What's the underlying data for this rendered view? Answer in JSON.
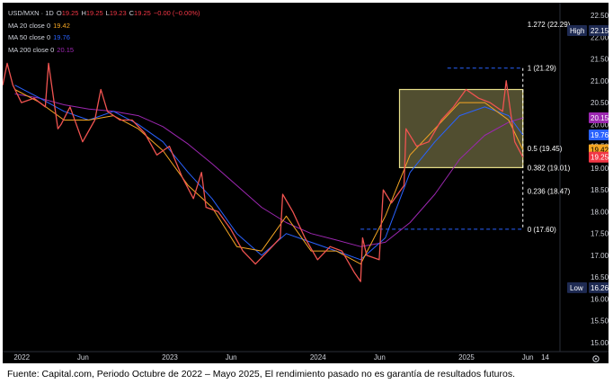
{
  "legend": {
    "symbol": "USD/MXN · 1D",
    "ohlc": [
      {
        "label": "O",
        "value": "19.25"
      },
      {
        "label": "H",
        "value": "19.25"
      },
      {
        "label": "L",
        "value": "19.23"
      },
      {
        "label": "C",
        "value": "19.25"
      },
      {
        "label": "",
        "value": "−0.00 (−0.00%)"
      }
    ],
    "ma": [
      {
        "label": "MA 20 close 0",
        "value": "19.42",
        "color": "#f5a623"
      },
      {
        "label": "MA 50 close 0",
        "value": "19.76",
        "color": "#2962ff"
      },
      {
        "label": "MA 200 close 0",
        "value": "20.15",
        "color": "#9c27b0"
      }
    ]
  },
  "caption": "Fuente: Capital.com, Periodo Octubre de 2022 – Mayo 2025, El rendimiento pasado no es garantía de resultados futuros.",
  "chart_data": {
    "type": "line",
    "series": [
      {
        "name": "USD/MXN",
        "color": "#ef5350",
        "points": [
          [
            "2021-11-15",
            20.9
          ],
          [
            "2021-11-26",
            21.4
          ],
          [
            "2021-12-10",
            20.9
          ],
          [
            "2021-12-31",
            20.5
          ],
          [
            "2022-01-31",
            20.6
          ],
          [
            "2022-02-28",
            20.4
          ],
          [
            "2022-03-08",
            21.4
          ],
          [
            "2022-03-31",
            19.9
          ],
          [
            "2022-04-08",
            20.0
          ],
          [
            "2022-04-30",
            20.4
          ],
          [
            "2022-05-31",
            19.6
          ],
          [
            "2022-06-30",
            20.1
          ],
          [
            "2022-07-15",
            20.8
          ],
          [
            "2022-07-31",
            20.3
          ],
          [
            "2022-08-31",
            20.1
          ],
          [
            "2022-09-30",
            20.1
          ],
          [
            "2022-10-31",
            19.8
          ],
          [
            "2022-11-30",
            19.3
          ],
          [
            "2022-12-31",
            19.5
          ],
          [
            "2023-01-31",
            18.8
          ],
          [
            "2023-02-28",
            18.3
          ],
          [
            "2023-03-20",
            18.9
          ],
          [
            "2023-03-31",
            18.1
          ],
          [
            "2023-04-30",
            18.0
          ],
          [
            "2023-05-31",
            17.6
          ],
          [
            "2023-06-30",
            17.1
          ],
          [
            "2023-07-31",
            16.8
          ],
          [
            "2023-08-31",
            17.1
          ],
          [
            "2023-09-30",
            17.4
          ],
          [
            "2023-10-06",
            18.4
          ],
          [
            "2023-10-31",
            18.0
          ],
          [
            "2023-11-30",
            17.4
          ],
          [
            "2023-12-31",
            16.9
          ],
          [
            "2024-01-31",
            17.2
          ],
          [
            "2024-02-29",
            17.1
          ],
          [
            "2024-03-31",
            16.6
          ],
          [
            "2024-04-15",
            16.4
          ],
          [
            "2024-04-20",
            17.4
          ],
          [
            "2024-04-30",
            17.0
          ],
          [
            "2024-05-31",
            16.9
          ],
          [
            "2024-06-10",
            18.5
          ],
          [
            "2024-06-30",
            18.2
          ],
          [
            "2024-07-31",
            18.6
          ],
          [
            "2024-08-05",
            19.9
          ],
          [
            "2024-08-31",
            19.5
          ],
          [
            "2024-09-30",
            19.6
          ],
          [
            "2024-10-31",
            20.1
          ],
          [
            "2024-11-30",
            20.4
          ],
          [
            "2024-12-31",
            20.8
          ],
          [
            "2025-01-31",
            20.6
          ],
          [
            "2025-02-28",
            20.5
          ],
          [
            "2025-03-31",
            20.3
          ],
          [
            "2025-04-09",
            21.0
          ],
          [
            "2025-04-30",
            19.6
          ],
          [
            "2025-05-20",
            19.25
          ]
        ]
      },
      {
        "name": "MA 20",
        "color": "#f5a623",
        "points": [
          [
            "2021-12-15",
            20.8
          ],
          [
            "2022-02-15",
            20.5
          ],
          [
            "2022-04-15",
            20.1
          ],
          [
            "2022-06-15",
            20.1
          ],
          [
            "2022-08-15",
            20.2
          ],
          [
            "2022-10-15",
            19.9
          ],
          [
            "2022-12-15",
            19.4
          ],
          [
            "2023-02-15",
            18.6
          ],
          [
            "2023-04-15",
            18.1
          ],
          [
            "2023-06-15",
            17.2
          ],
          [
            "2023-08-15",
            17.1
          ],
          [
            "2023-10-15",
            17.9
          ],
          [
            "2023-12-15",
            17.1
          ],
          [
            "2024-02-15",
            17.1
          ],
          [
            "2024-04-15",
            16.8
          ],
          [
            "2024-06-15",
            17.9
          ],
          [
            "2024-08-15",
            19.3
          ],
          [
            "2024-10-15",
            19.9
          ],
          [
            "2024-12-15",
            20.5
          ],
          [
            "2025-02-15",
            20.5
          ],
          [
            "2025-04-15",
            20.1
          ],
          [
            "2025-05-20",
            19.42
          ]
        ]
      },
      {
        "name": "MA 50",
        "color": "#2962ff",
        "points": [
          [
            "2021-12-15",
            20.9
          ],
          [
            "2022-02-15",
            20.6
          ],
          [
            "2022-04-15",
            20.3
          ],
          [
            "2022-06-15",
            20.1
          ],
          [
            "2022-08-15",
            20.3
          ],
          [
            "2022-10-15",
            20.0
          ],
          [
            "2022-12-15",
            19.6
          ],
          [
            "2023-02-15",
            18.9
          ],
          [
            "2023-04-15",
            18.3
          ],
          [
            "2023-06-15",
            17.5
          ],
          [
            "2023-08-15",
            17.0
          ],
          [
            "2023-10-15",
            17.5
          ],
          [
            "2023-12-15",
            17.3
          ],
          [
            "2024-02-15",
            17.1
          ],
          [
            "2024-04-15",
            16.9
          ],
          [
            "2024-06-15",
            17.4
          ],
          [
            "2024-08-15",
            18.9
          ],
          [
            "2024-10-15",
            19.6
          ],
          [
            "2024-12-15",
            20.2
          ],
          [
            "2025-02-15",
            20.4
          ],
          [
            "2025-04-15",
            20.2
          ],
          [
            "2025-05-20",
            19.76
          ]
        ]
      },
      {
        "name": "MA 200",
        "color": "#9c27b0",
        "points": [
          [
            "2021-12-15",
            20.7
          ],
          [
            "2022-02-15",
            20.6
          ],
          [
            "2022-04-15",
            20.45
          ],
          [
            "2022-06-15",
            20.35
          ],
          [
            "2022-08-15",
            20.3
          ],
          [
            "2022-10-15",
            20.2
          ],
          [
            "2022-12-15",
            19.95
          ],
          [
            "2023-02-15",
            19.55
          ],
          [
            "2023-04-15",
            19.1
          ],
          [
            "2023-06-15",
            18.6
          ],
          [
            "2023-08-15",
            18.1
          ],
          [
            "2023-10-15",
            17.75
          ],
          [
            "2023-12-15",
            17.5
          ],
          [
            "2024-02-15",
            17.35
          ],
          [
            "2024-04-15",
            17.2
          ],
          [
            "2024-06-15",
            17.3
          ],
          [
            "2024-08-15",
            17.75
          ],
          [
            "2024-10-15",
            18.4
          ],
          [
            "2024-12-15",
            19.2
          ],
          [
            "2025-02-15",
            19.75
          ],
          [
            "2025-04-15",
            20.05
          ],
          [
            "2025-05-20",
            20.15
          ]
        ]
      }
    ],
    "x_ticks": [
      {
        "label": "2022",
        "date": "2022-01-01"
      },
      {
        "label": "Jun",
        "date": "2022-06-01"
      },
      {
        "label": "2023",
        "date": "2023-01-01"
      },
      {
        "label": "Jun",
        "date": "2023-06-01"
      },
      {
        "label": "2024",
        "date": "2024-01-01"
      },
      {
        "label": "Jun",
        "date": "2024-06-01"
      },
      {
        "label": "2025",
        "date": "2025-01-01"
      },
      {
        "label": "Jun",
        "date": "2025-06-01"
      },
      {
        "label": "14",
        "date": "2025-07-14"
      }
    ],
    "y_ticks": [
      "22.50",
      "22.00",
      "21.50",
      "21.00",
      "20.50",
      "20.00",
      "19.50",
      "19.00",
      "18.50",
      "18.00",
      "17.50",
      "17.00",
      "16.50",
      "16.00",
      "15.50",
      "15.00"
    ],
    "ylim": [
      15.0,
      22.5
    ],
    "xlim": [
      "2021-11-15",
      "2025-08-15"
    ],
    "fib_levels": [
      {
        "label": "1.272 (22.29)",
        "value": 22.29
      },
      {
        "label": "1 (21.29)",
        "value": 21.29
      },
      {
        "label": "0.5 (19.45)",
        "value": 19.45
      },
      {
        "label": "0.382 (19.01)",
        "value": 19.01
      },
      {
        "label": "0.236 (18.47)",
        "value": 18.47
      },
      {
        "label": "0 (17.60)",
        "value": 17.6
      }
    ],
    "fib_anchor": {
      "low_date": "2024-04-15",
      "high_date": "2025-05-20"
    },
    "box": {
      "x0": "2024-07-20",
      "x1": "2025-05-20",
      "y0": 19.01,
      "y1": 20.8,
      "color": "#e8e08a"
    },
    "badges": [
      {
        "label": "High",
        "value": "22.15",
        "y": 22.15,
        "bg": "#1e2a52",
        "fg": "#ffffff"
      },
      {
        "label": "",
        "value": "20.15",
        "y": 20.15,
        "bg": "#9c27b0",
        "fg": "#ffffff"
      },
      {
        "label": "",
        "value": "19.76",
        "y": 19.76,
        "bg": "#2962ff",
        "fg": "#ffffff"
      },
      {
        "label": "",
        "value": "19.42",
        "y": 19.42,
        "bg": "#f5a623",
        "fg": "#000000"
      },
      {
        "label": "",
        "value": "19.25",
        "y": 19.25,
        "bg": "#f23645",
        "fg": "#ffffff"
      },
      {
        "label": "Low",
        "value": "16.26",
        "y": 16.26,
        "bg": "#1e2a52",
        "fg": "#ffffff"
      }
    ],
    "settings_icon": "gear-icon"
  }
}
